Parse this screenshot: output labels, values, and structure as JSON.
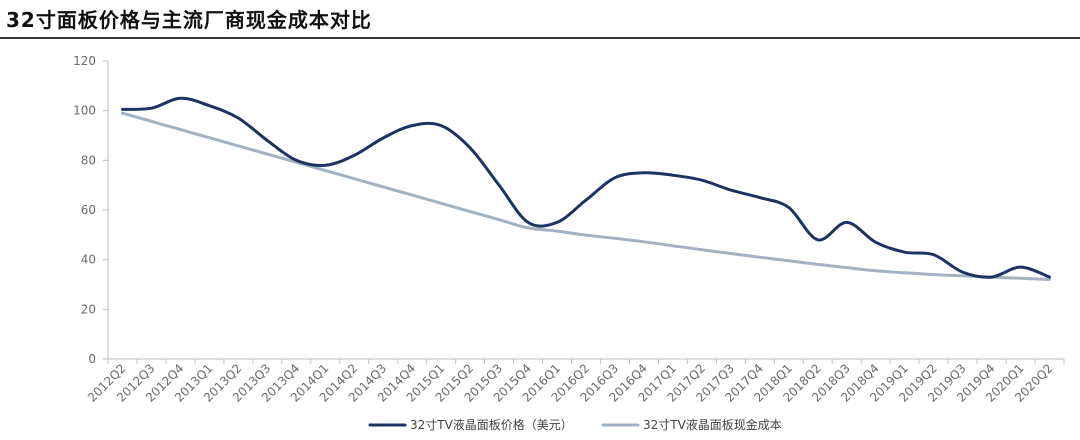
{
  "header": {
    "title": "32寸面板价格与主流厂商现金成本对比"
  },
  "chart_data": {
    "type": "line",
    "title": "32寸面板价格与主流厂商现金成本对比",
    "xlabel": "",
    "ylabel": "",
    "ylim": [
      0,
      120
    ],
    "yticks": [
      0,
      20,
      40,
      60,
      80,
      100,
      120
    ],
    "grid": false,
    "legend_position": "bottom",
    "categories": [
      "2012Q2",
      "2012Q3",
      "2012Q4",
      "2013Q1",
      "2013Q2",
      "2013Q3",
      "2013Q4",
      "2014Q1",
      "2014Q2",
      "2014Q3",
      "2014Q4",
      "2015Q1",
      "2015Q2",
      "2015Q3",
      "2015Q4",
      "2016Q1",
      "2016Q2",
      "2016Q3",
      "2016Q4",
      "2017Q1",
      "2017Q2",
      "2017Q3",
      "2017Q4",
      "2018Q1",
      "2018Q2",
      "2018Q3",
      "2018Q4",
      "2019Q1",
      "2019Q2",
      "2019Q3",
      "2019Q4",
      "2020Q1",
      "2020Q2"
    ],
    "series": [
      {
        "name": "32寸TV液晶面板价格（美元）",
        "color": "#1c3461",
        "values": [
          100.5,
          101,
          105,
          102,
          97,
          88,
          80,
          78,
          82,
          89,
          94,
          94,
          85,
          70,
          55,
          55,
          64,
          73,
          75,
          74,
          72,
          68,
          65,
          61,
          48,
          55,
          47,
          43,
          42,
          35,
          33,
          37,
          33
        ]
      },
      {
        "name": "32寸TV液晶面板现金成本",
        "color": "#a3b1c3",
        "values": [
          99,
          95.7,
          92.4,
          89.1,
          85.8,
          82.5,
          79.2,
          75.9,
          72.6,
          69.3,
          66,
          62.7,
          59.4,
          56.1,
          52.8,
          51.5,
          49.9,
          48.6,
          47.2,
          45.6,
          44,
          42.5,
          41,
          39.6,
          38.1,
          36.8,
          35.5,
          34.7,
          34,
          33.5,
          33,
          32.5,
          32
        ]
      }
    ]
  }
}
